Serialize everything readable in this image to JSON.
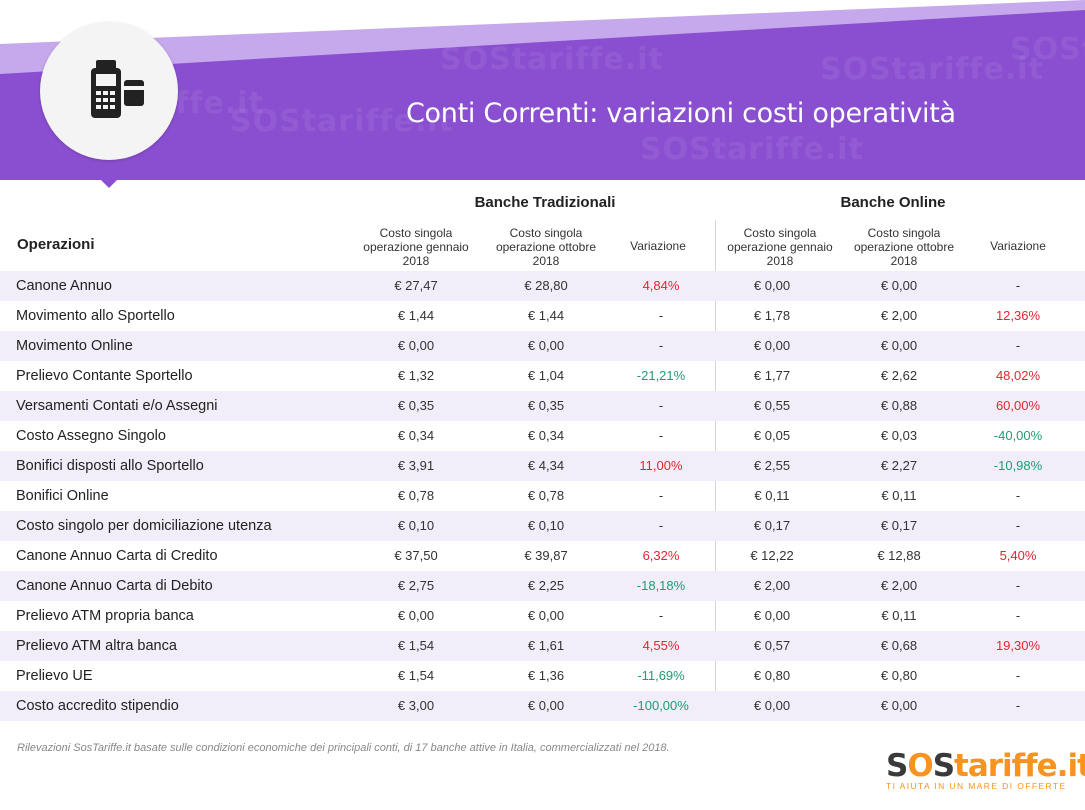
{
  "header": {
    "title": "Conti Correnti: variazioni costi operatività",
    "icon": "pos-terminal-icon",
    "watermark": "SOStariffe.it"
  },
  "table": {
    "groups": [
      "Banche Tradizionali",
      "Banche Online"
    ],
    "operations_label": "Operazioni",
    "col_heads": [
      "Costo singola operazione gennaio 2018",
      "Costo singola operazione ottobre 2018",
      "Variazione",
      "Costo singola operazione gennaio 2018",
      "Costo singola operazione ottobre 2018",
      "Variazione"
    ],
    "rows": [
      {
        "name": "Canone Annuo",
        "t_jan": "€ 27,47",
        "t_oct": "€ 28,80",
        "t_var": "4,84%",
        "t_dir": "up",
        "o_jan": "€ 0,00",
        "o_oct": "€ 0,00",
        "o_var": "-",
        "o_dir": "none"
      },
      {
        "name": "Movimento allo Sportello",
        "t_jan": "€ 1,44",
        "t_oct": "€ 1,44",
        "t_var": "-",
        "t_dir": "none",
        "o_jan": "€ 1,78",
        "o_oct": "€ 2,00",
        "o_var": "12,36%",
        "o_dir": "up"
      },
      {
        "name": "Movimento Online",
        "t_jan": "€ 0,00",
        "t_oct": "€ 0,00",
        "t_var": "-",
        "t_dir": "none",
        "o_jan": "€ 0,00",
        "o_oct": "€ 0,00",
        "o_var": "-",
        "o_dir": "none"
      },
      {
        "name": "Prelievo Contante Sportello",
        "t_jan": "€ 1,32",
        "t_oct": "€ 1,04",
        "t_var": "-21,21%",
        "t_dir": "down",
        "o_jan": "€ 1,77",
        "o_oct": "€ 2,62",
        "o_var": "48,02%",
        "o_dir": "up"
      },
      {
        "name": "Versamenti Contati e/o Assegni",
        "t_jan": "€ 0,35",
        "t_oct": "€ 0,35",
        "t_var": "-",
        "t_dir": "none",
        "o_jan": "€ 0,55",
        "o_oct": "€ 0,88",
        "o_var": "60,00%",
        "o_dir": "up"
      },
      {
        "name": "Costo Assegno Singolo",
        "t_jan": "€ 0,34",
        "t_oct": "€ 0,34",
        "t_var": "-",
        "t_dir": "none",
        "o_jan": "€ 0,05",
        "o_oct": "€ 0,03",
        "o_var": "-40,00%",
        "o_dir": "down"
      },
      {
        "name": "Bonifici disposti allo Sportello",
        "t_jan": "€ 3,91",
        "t_oct": "€ 4,34",
        "t_var": "11,00%",
        "t_dir": "up",
        "o_jan": "€ 2,55",
        "o_oct": "€ 2,27",
        "o_var": "-10,98%",
        "o_dir": "down"
      },
      {
        "name": "Bonifici Online",
        "t_jan": "€ 0,78",
        "t_oct": "€ 0,78",
        "t_var": "-",
        "t_dir": "none",
        "o_jan": "€ 0,11",
        "o_oct": "€ 0,11",
        "o_var": "-",
        "o_dir": "none"
      },
      {
        "name": "Costo singolo per domiciliazione utenza",
        "t_jan": "€ 0,10",
        "t_oct": "€ 0,10",
        "t_var": "-",
        "t_dir": "none",
        "o_jan": "€ 0,17",
        "o_oct": "€ 0,17",
        "o_var": "-",
        "o_dir": "none"
      },
      {
        "name": "Canone Annuo Carta di Credito",
        "t_jan": "€ 37,50",
        "t_oct": "€ 39,87",
        "t_var": "6,32%",
        "t_dir": "up",
        "o_jan": "€ 12,22",
        "o_oct": "€ 12,88",
        "o_var": "5,40%",
        "o_dir": "up"
      },
      {
        "name": "Canone Annuo Carta di Debito",
        "t_jan": "€ 2,75",
        "t_oct": "€ 2,25",
        "t_var": "-18,18%",
        "t_dir": "down",
        "o_jan": "€ 2,00",
        "o_oct": "€ 2,00",
        "o_var": "-",
        "o_dir": "none"
      },
      {
        "name": "Prelievo ATM propria banca",
        "t_jan": "€ 0,00",
        "t_oct": "€ 0,00",
        "t_var": "-",
        "t_dir": "none",
        "o_jan": "€ 0,00",
        "o_oct": "€ 0,11",
        "o_var": "-",
        "o_dir": "none"
      },
      {
        "name": "Prelievo ATM altra banca",
        "t_jan": "€ 1,54",
        "t_oct": "€ 1,61",
        "t_var": "4,55%",
        "t_dir": "up",
        "o_jan": "€ 0,57",
        "o_oct": "€ 0,68",
        "o_var": "19,30%",
        "o_dir": "up"
      },
      {
        "name": "Prelievo UE",
        "t_jan": "€ 1,54",
        "t_oct": "€ 1,36",
        "t_var": "-11,69%",
        "t_dir": "down",
        "o_jan": "€ 0,80",
        "o_oct": "€ 0,80",
        "o_var": "-",
        "o_dir": "none"
      },
      {
        "name": "Costo accredito stipendio",
        "t_jan": "€ 3,00",
        "t_oct": "€ 0,00",
        "t_var": "-100,00%",
        "t_dir": "down",
        "o_jan": "€ 0,00",
        "o_oct": "€ 0,00",
        "o_var": "-",
        "o_dir": "none"
      }
    ]
  },
  "footnote": "Rilevazioni SosTariffe.it basate sulle condizioni economiche dei principali conti, di 17 banche attive in Italia, commercializzati nel 2018.",
  "logo": {
    "part1": "S",
    "part2": "O",
    "part3": "S",
    "part4": "tariffe.it",
    "tagline": "TI AIUTA IN UN MARE DI OFFERTE"
  },
  "colors": {
    "purple": "#8a4fd0",
    "purple_light": "#c6a8ec",
    "row_alt": "#f1edf9",
    "increase": "#e3262f",
    "decrease": "#1f9c73",
    "logo_orange": "#f7931e"
  }
}
